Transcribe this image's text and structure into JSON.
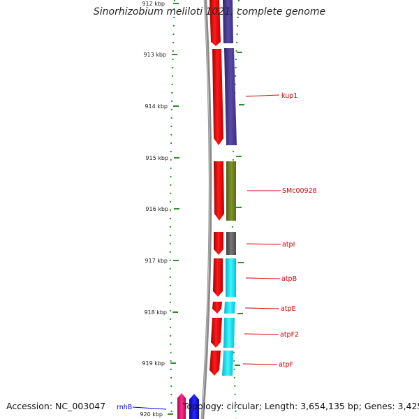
{
  "title": "Sinorhizobium meliloti 1021, complete genome",
  "accession": "Accession: NC_003047",
  "summary": "Topology: circular; Length: 3,654,135 bp; Genes: 3,425",
  "colors": {
    "backbone": "#8a8a8a",
    "ruler": "#2e8b2e",
    "label_red": "#cc0000",
    "label_blue": "#0000cc"
  },
  "ticks": [
    {
      "kbp": 913,
      "label": "913 kbp"
    },
    {
      "kbp": 914,
      "label": "914 kbp"
    },
    {
      "kbp": 915,
      "label": "915 kbp"
    },
    {
      "kbp": 916,
      "label": "916 kbp"
    },
    {
      "kbp": 917,
      "label": "917 kbp"
    },
    {
      "kbp": 918,
      "label": "918 kbp"
    },
    {
      "kbp": 919,
      "label": "919 kbp"
    },
    {
      "kbp": 920,
      "label": "920 kbp"
    }
  ],
  "top_tick_label": "912 kbp",
  "genes": [
    {
      "name": "kup1",
      "label_color": "#cc0000",
      "cds_color": "#ee0000",
      "feature_color": "#4b3b8c"
    },
    {
      "name": "SMc00928",
      "label_color": "#cc0000",
      "cds_color": "#ee0000",
      "feature_color": "#6b7f1f"
    },
    {
      "name": "atpI",
      "label_color": "#cc0000",
      "cds_color": "#ee0000",
      "feature_color": "#5e5e5e"
    },
    {
      "name": "atpB",
      "label_color": "#cc0000",
      "cds_color": "#ee0000",
      "feature_color": "#00d8e8"
    },
    {
      "name": "atpE",
      "label_color": "#cc0000",
      "cds_color": "#ee0000",
      "feature_color": "#00d8e8"
    },
    {
      "name": "atpF2",
      "label_color": "#cc0000",
      "cds_color": "#ee0000",
      "feature_color": "#00d8e8"
    },
    {
      "name": "atpF",
      "label_color": "#cc0000",
      "cds_color": "#ee0000",
      "feature_color": "#00d8e8"
    },
    {
      "name": "rnhB",
      "label_color": "#0000cc",
      "cds_color": "#e0106a",
      "feature_color": "#0000ee"
    }
  ]
}
